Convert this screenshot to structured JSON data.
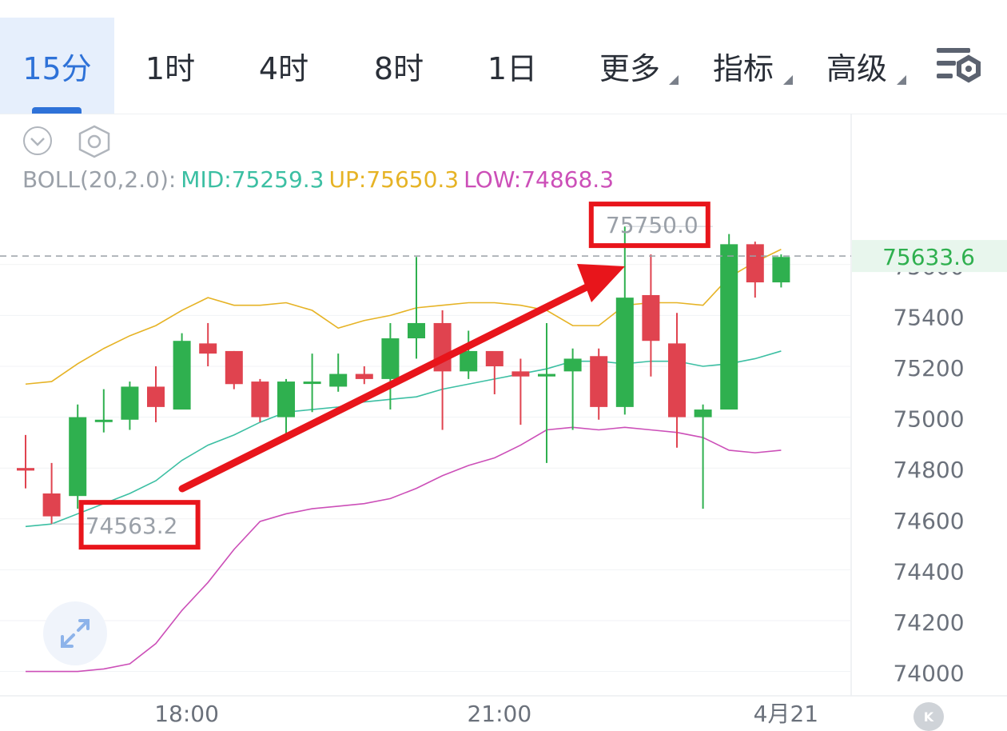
{
  "tabs": [
    {
      "label": "15分",
      "active": true
    },
    {
      "label": "1时"
    },
    {
      "label": "4时"
    },
    {
      "label": "8时"
    },
    {
      "label": "1日"
    },
    {
      "label": "更多",
      "dropdown": true
    },
    {
      "label": "指标",
      "dropdown": true
    },
    {
      "label": "高级",
      "dropdown": true
    }
  ],
  "indicator": {
    "name": "BOLL(20,2.0):",
    "mid": "MID:75259.3",
    "up": "UP:75650.3",
    "low": "LOW:74868.3"
  },
  "colors": {
    "up_candle": "#2fb04f",
    "down_candle": "#e0434f",
    "mid": "#3cbfa3",
    "up": "#e6b325",
    "low": "#cc4fb8",
    "accent": "#2e72d8",
    "annotation": "#e8151b"
  },
  "icons": {
    "settings": "settings-gear-icon",
    "collapse": "chevron-down-circle-icon",
    "hexagon": "hexagon-settings-icon",
    "expand": "expand-arrows-icon",
    "k": "k-logo-icon"
  },
  "chart_data": {
    "type": "candlestick",
    "ylim": [
      73900,
      75900
    ],
    "yticks": [
      75600,
      75400,
      75200,
      75000,
      74800,
      74600,
      74400,
      74200,
      74000
    ],
    "ytick_labels": [
      "75600",
      "75400",
      "75200",
      "75000",
      "74800",
      "74600",
      "74400",
      "74200",
      "74000"
    ],
    "xtick_labels": [
      {
        "label": "18:00",
        "index": 6
      },
      {
        "label": "21:00",
        "index": 18
      },
      {
        "label": "4月21",
        "index": 29
      }
    ],
    "current_price": 75633.6,
    "current_price_label": "75633.6",
    "high_label": "75750.0",
    "low_label": "74563.2",
    "candles": [
      {
        "o": 74800,
        "h": 74930,
        "l": 74720,
        "c": 74790
      },
      {
        "o": 74700,
        "h": 74820,
        "l": 74580,
        "c": 74610
      },
      {
        "o": 74690,
        "h": 75050,
        "l": 74640,
        "c": 75000
      },
      {
        "o": 74990,
        "h": 75110,
        "l": 74940,
        "c": 74990
      },
      {
        "o": 74990,
        "h": 75140,
        "l": 74950,
        "c": 75120
      },
      {
        "o": 75120,
        "h": 75200,
        "l": 74980,
        "c": 75040
      },
      {
        "o": 75030,
        "h": 75330,
        "l": 75030,
        "c": 75300
      },
      {
        "o": 75290,
        "h": 75370,
        "l": 75200,
        "c": 75250
      },
      {
        "o": 75260,
        "h": 75260,
        "l": 75110,
        "c": 75130
      },
      {
        "o": 75140,
        "h": 75150,
        "l": 74980,
        "c": 75000
      },
      {
        "o": 75000,
        "h": 75150,
        "l": 74910,
        "c": 75140
      },
      {
        "o": 75140,
        "h": 75250,
        "l": 75020,
        "c": 75140
      },
      {
        "o": 75120,
        "h": 75250,
        "l": 75100,
        "c": 75170
      },
      {
        "o": 75170,
        "h": 75200,
        "l": 75130,
        "c": 75150
      },
      {
        "o": 75150,
        "h": 75370,
        "l": 75030,
        "c": 75310
      },
      {
        "o": 75310,
        "h": 75630,
        "l": 75230,
        "c": 75370
      },
      {
        "o": 75370,
        "h": 75420,
        "l": 74950,
        "c": 75180
      },
      {
        "o": 75180,
        "h": 75340,
        "l": 75150,
        "c": 75260
      },
      {
        "o": 75260,
        "h": 75240,
        "l": 75090,
        "c": 75200
      },
      {
        "o": 75180,
        "h": 75230,
        "l": 74970,
        "c": 75160
      },
      {
        "o": 75160,
        "h": 75370,
        "l": 74820,
        "c": 75170
      },
      {
        "o": 75180,
        "h": 75270,
        "l": 74950,
        "c": 75230
      },
      {
        "o": 75240,
        "h": 75270,
        "l": 74990,
        "c": 75040
      },
      {
        "o": 75040,
        "h": 75750,
        "l": 75010,
        "c": 75470
      },
      {
        "o": 75480,
        "h": 75640,
        "l": 75160,
        "c": 75300
      },
      {
        "o": 75290,
        "h": 75410,
        "l": 74880,
        "c": 75000
      },
      {
        "o": 75000,
        "h": 75050,
        "l": 74640,
        "c": 75030
      },
      {
        "o": 75030,
        "h": 75720,
        "l": 75030,
        "c": 75680
      },
      {
        "o": 75680,
        "h": 75690,
        "l": 75470,
        "c": 75530
      },
      {
        "o": 75530,
        "h": 75640,
        "l": 75510,
        "c": 75630
      }
    ],
    "boll_up": [
      75130,
      75140,
      75210,
      75270,
      75320,
      75360,
      75420,
      75470,
      75440,
      75440,
      75450,
      75420,
      75350,
      75380,
      75400,
      75430,
      75440,
      75450,
      75450,
      75440,
      75420,
      75360,
      75360,
      75440,
      75450,
      75450,
      75440,
      75550,
      75610,
      75660
    ],
    "boll_mid": [
      74570,
      74580,
      74620,
      74660,
      74700,
      74750,
      74830,
      74890,
      74930,
      74980,
      75020,
      75030,
      75040,
      75060,
      75070,
      75080,
      75110,
      75130,
      75150,
      75170,
      75190,
      75220,
      75220,
      75210,
      75220,
      75220,
      75200,
      75210,
      75230,
      75260
    ],
    "boll_low": [
      74000,
      74000,
      74000,
      74010,
      74030,
      74110,
      74240,
      74350,
      74480,
      74590,
      74620,
      74640,
      74650,
      74660,
      74680,
      74720,
      74770,
      74810,
      74840,
      74890,
      74950,
      74960,
      74950,
      74960,
      74950,
      74940,
      74920,
      74870,
      74860,
      74870
    ]
  }
}
